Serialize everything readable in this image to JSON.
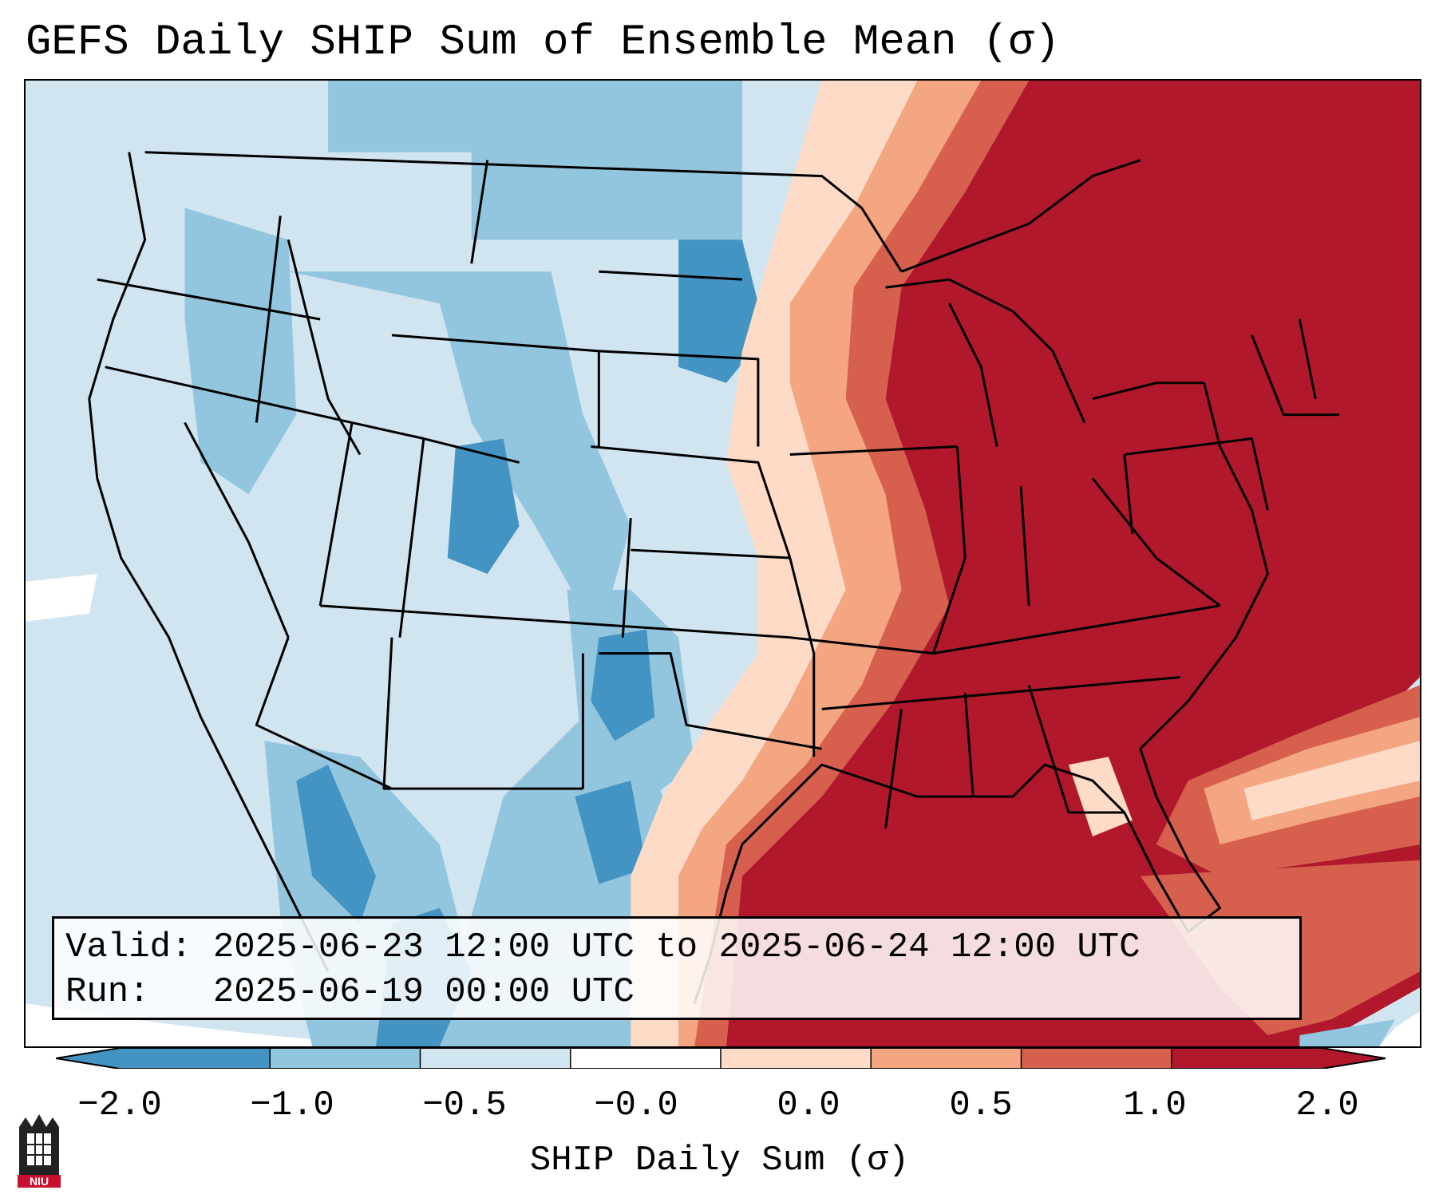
{
  "title": "GEFS Daily SHIP Sum of Ensemble Mean (σ)",
  "info": {
    "valid_line": "Valid: 2025-06-23 12:00 UTC to 2025-06-24 12:00 UTC",
    "run_line": "Run:   2025-06-19 00:00 UTC"
  },
  "colorbar": {
    "label": "SHIP Daily Sum (σ)",
    "ticks": [
      "−2.0",
      "−1.0",
      "−0.5",
      "−0.0",
      "0.0",
      "0.5",
      "1.0",
      "2.0"
    ],
    "colors": [
      "#4393c3",
      "#92c5de",
      "#d1e5f0",
      "#ffffff",
      "#fddbc7",
      "#f4a582",
      "#d6604d",
      "#b2182b"
    ],
    "extend": "both"
  },
  "map": {
    "region": "CONUS",
    "colors": {
      "strong_neg": "#4393c3",
      "neg": "#92c5de",
      "weak_neg": "#d1e5f0",
      "weak_pos": "#fddbc7",
      "pos": "#f4a582",
      "strong_pos": "#d6604d",
      "max_pos": "#b2182b"
    }
  },
  "logo": {
    "name": "niu-logo",
    "text": "NIU"
  }
}
